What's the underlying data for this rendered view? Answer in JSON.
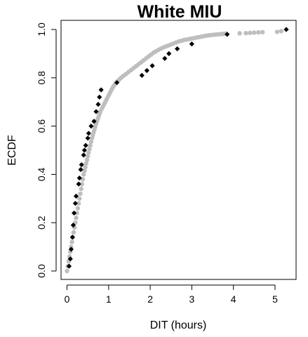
{
  "chart_data": {
    "type": "scatter",
    "title": "White MIU",
    "xlabel": "DIT (hours)",
    "ylabel": "ECDF",
    "xlim": [
      0,
      5.3
    ],
    "ylim": [
      0,
      1.0
    ],
    "xticks": [
      "0",
      "1",
      "2",
      "3",
      "4",
      "5"
    ],
    "yticks": [
      "0.0",
      "0.2",
      "0.4",
      "0.6",
      "0.8",
      "1.0"
    ],
    "legend": "none",
    "grid": false,
    "series": [
      {
        "color": "#bebebe",
        "marker": "circle",
        "points": [
          [
            0.0,
            0.0
          ],
          [
            0.02,
            0.02
          ],
          [
            0.04,
            0.04
          ],
          [
            0.06,
            0.06
          ],
          [
            0.08,
            0.08
          ],
          [
            0.1,
            0.1
          ],
          [
            0.12,
            0.12
          ],
          [
            0.14,
            0.14
          ],
          [
            0.16,
            0.16
          ],
          [
            0.18,
            0.18
          ],
          [
            0.2,
            0.2
          ],
          [
            0.22,
            0.22
          ],
          [
            0.24,
            0.24
          ],
          [
            0.26,
            0.26
          ],
          [
            0.28,
            0.28
          ],
          [
            0.3,
            0.3
          ],
          [
            0.32,
            0.32
          ],
          [
            0.34,
            0.34
          ],
          [
            0.36,
            0.36
          ],
          [
            0.38,
            0.38
          ],
          [
            0.4,
            0.4
          ],
          [
            0.42,
            0.415
          ],
          [
            0.44,
            0.43
          ],
          [
            0.46,
            0.445
          ],
          [
            0.48,
            0.46
          ],
          [
            0.5,
            0.475
          ],
          [
            0.52,
            0.49
          ],
          [
            0.54,
            0.505
          ],
          [
            0.56,
            0.52
          ],
          [
            0.58,
            0.535
          ],
          [
            0.6,
            0.55
          ],
          [
            0.62,
            0.562
          ],
          [
            0.64,
            0.574
          ],
          [
            0.66,
            0.586
          ],
          [
            0.68,
            0.598
          ],
          [
            0.7,
            0.61
          ],
          [
            0.72,
            0.62
          ],
          [
            0.74,
            0.63
          ],
          [
            0.76,
            0.64
          ],
          [
            0.78,
            0.65
          ],
          [
            0.8,
            0.66
          ],
          [
            0.83,
            0.67
          ],
          [
            0.86,
            0.68
          ],
          [
            0.89,
            0.69
          ],
          [
            0.92,
            0.7
          ],
          [
            0.95,
            0.71
          ],
          [
            0.98,
            0.72
          ],
          [
            1.01,
            0.73
          ],
          [
            1.04,
            0.74
          ],
          [
            1.07,
            0.75
          ],
          [
            1.1,
            0.76
          ],
          [
            1.13,
            0.768
          ],
          [
            1.16,
            0.776
          ],
          [
            1.2,
            0.784
          ],
          [
            1.25,
            0.792
          ],
          [
            1.3,
            0.8
          ],
          [
            1.36,
            0.808
          ],
          [
            1.42,
            0.816
          ],
          [
            1.48,
            0.824
          ],
          [
            1.54,
            0.832
          ],
          [
            1.6,
            0.84
          ],
          [
            1.66,
            0.848
          ],
          [
            1.72,
            0.856
          ],
          [
            1.78,
            0.864
          ],
          [
            1.84,
            0.872
          ],
          [
            1.9,
            0.88
          ],
          [
            1.96,
            0.888
          ],
          [
            2.02,
            0.896
          ],
          [
            2.08,
            0.904
          ],
          [
            2.14,
            0.91
          ],
          [
            2.2,
            0.916
          ],
          [
            2.26,
            0.921
          ],
          [
            2.32,
            0.926
          ],
          [
            2.38,
            0.93
          ],
          [
            2.44,
            0.934
          ],
          [
            2.5,
            0.938
          ],
          [
            2.56,
            0.942
          ],
          [
            2.62,
            0.946
          ],
          [
            2.68,
            0.95
          ],
          [
            2.74,
            0.953
          ],
          [
            2.8,
            0.956
          ],
          [
            2.86,
            0.958
          ],
          [
            2.92,
            0.96
          ],
          [
            2.98,
            0.962
          ],
          [
            3.04,
            0.964
          ],
          [
            3.1,
            0.966
          ],
          [
            3.16,
            0.968
          ],
          [
            3.22,
            0.97
          ],
          [
            3.28,
            0.972
          ],
          [
            3.34,
            0.974
          ],
          [
            3.4,
            0.976
          ],
          [
            3.46,
            0.977
          ],
          [
            3.52,
            0.978
          ],
          [
            3.58,
            0.979
          ],
          [
            3.64,
            0.98
          ],
          [
            3.7,
            0.981
          ],
          [
            3.76,
            0.982
          ],
          [
            3.82,
            0.983
          ],
          [
            4.15,
            0.984
          ],
          [
            4.3,
            0.985
          ],
          [
            4.4,
            0.986
          ],
          [
            4.5,
            0.987
          ],
          [
            4.6,
            0.988
          ],
          [
            4.7,
            0.989
          ],
          [
            5.05,
            0.99
          ],
          [
            5.15,
            0.993
          ]
        ]
      },
      {
        "color": "#000000",
        "marker": "diamond",
        "points": [
          [
            0.05,
            0.02
          ],
          [
            0.08,
            0.05
          ],
          [
            0.1,
            0.09
          ],
          [
            0.13,
            0.14
          ],
          [
            0.15,
            0.19
          ],
          [
            0.17,
            0.24
          ],
          [
            0.2,
            0.28
          ],
          [
            0.22,
            0.31
          ],
          [
            0.28,
            0.36
          ],
          [
            0.3,
            0.385
          ],
          [
            0.33,
            0.42
          ],
          [
            0.35,
            0.44
          ],
          [
            0.4,
            0.48
          ],
          [
            0.42,
            0.5
          ],
          [
            0.45,
            0.52
          ],
          [
            0.5,
            0.55
          ],
          [
            0.52,
            0.57
          ],
          [
            0.58,
            0.6
          ],
          [
            0.65,
            0.62
          ],
          [
            0.7,
            0.66
          ],
          [
            0.75,
            0.69
          ],
          [
            0.78,
            0.72
          ],
          [
            0.82,
            0.75
          ],
          [
            1.2,
            0.78
          ],
          [
            1.8,
            0.81
          ],
          [
            1.92,
            0.83
          ],
          [
            2.05,
            0.85
          ],
          [
            2.35,
            0.88
          ],
          [
            2.45,
            0.9
          ],
          [
            2.65,
            0.92
          ],
          [
            3.0,
            0.94
          ],
          [
            3.85,
            0.98
          ],
          [
            5.27,
            1.0
          ]
        ]
      }
    ]
  }
}
